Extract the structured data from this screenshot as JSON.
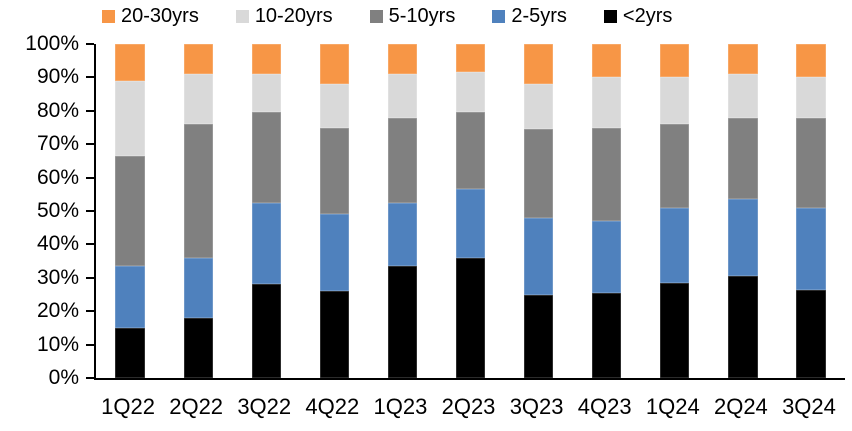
{
  "chart_data": {
    "type": "bar",
    "variant": "stacked-100-percent",
    "title": "",
    "xlabel": "",
    "ylabel": "",
    "ylim": [
      0,
      100
    ],
    "y_ticks": [
      "0%",
      "10%",
      "20%",
      "30%",
      "40%",
      "50%",
      "60%",
      "70%",
      "80%",
      "90%",
      "100%"
    ],
    "grid": false,
    "legend_position": "top",
    "legend_order": [
      "20-30yrs",
      "10-20yrs",
      "5-10yrs",
      "2-5yrs",
      "<2yrs"
    ],
    "categories": [
      "1Q22",
      "2Q22",
      "3Q22",
      "4Q22",
      "1Q23",
      "2Q23",
      "3Q23",
      "4Q23",
      "1Q24",
      "2Q24",
      "3Q24"
    ],
    "series": [
      {
        "name": "<2yrs",
        "color": "#000000",
        "values": [
          15.0,
          18.0,
          28.0,
          26.0,
          33.5,
          36.0,
          25.0,
          25.5,
          28.5,
          30.5,
          26.5
        ]
      },
      {
        "name": "2-5yrs",
        "color": "#4F81BD",
        "values": [
          18.5,
          18.0,
          24.5,
          23.0,
          19.0,
          20.5,
          23.0,
          21.5,
          22.5,
          23.0,
          24.5
        ]
      },
      {
        "name": "5-10yrs",
        "color": "#808080",
        "values": [
          33.0,
          40.0,
          27.0,
          26.0,
          25.5,
          23.0,
          26.5,
          28.0,
          25.0,
          24.5,
          27.0
        ]
      },
      {
        "name": "10-20yrs",
        "color": "#D9D9D9",
        "values": [
          22.5,
          15.0,
          11.5,
          13.0,
          13.0,
          12.0,
          13.5,
          15.0,
          14.0,
          13.0,
          12.0
        ]
      },
      {
        "name": "20-30yrs",
        "color": "#F79646",
        "values": [
          11.0,
          9.0,
          9.0,
          12.0,
          9.0,
          8.5,
          12.0,
          10.0,
          10.0,
          9.0,
          10.0
        ]
      }
    ],
    "colors": {
      "orange": "#F79646",
      "light_gray": "#D9D9D9",
      "dark_gray": "#808080",
      "blue": "#4F81BD",
      "black": "#000000",
      "axis": "#000000",
      "background": "#FFFFFF"
    }
  }
}
